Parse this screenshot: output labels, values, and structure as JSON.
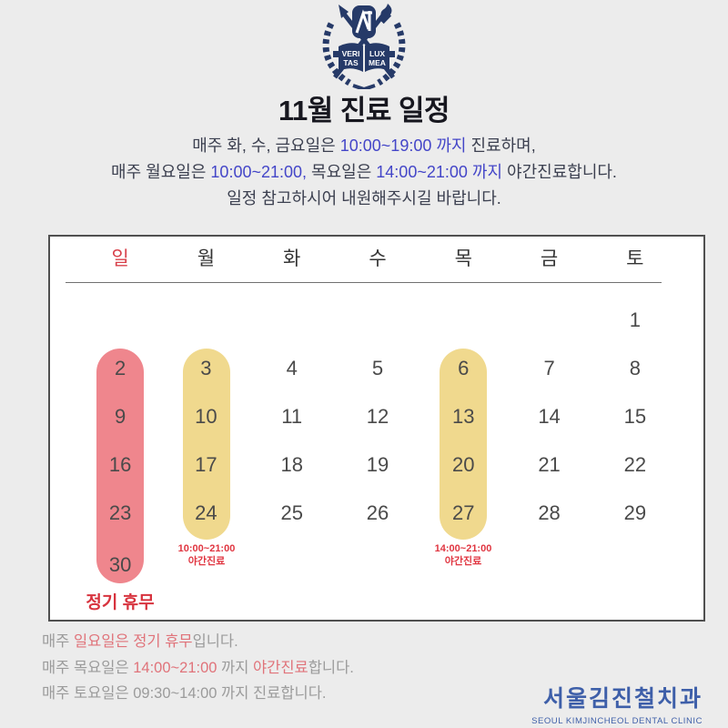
{
  "page": {
    "background": "#ececec"
  },
  "header": {
    "title": "11월 진료 일정",
    "crest": {
      "icon": "university-crest-icon",
      "color": "#263a68",
      "motto": [
        "VERI",
        "TAS",
        "LUX",
        "MEA"
      ]
    }
  },
  "intro": {
    "text_color": "#3c4050",
    "highlight_color": "#4446c8",
    "lines": [
      [
        {
          "t": "매주 화, 수, 금요일은 "
        },
        {
          "t": "10:00~19:00 까지",
          "c": "blue"
        },
        {
          "t": " 진료하며,"
        }
      ],
      [
        {
          "t": "매주 월요일은 "
        },
        {
          "t": "10:00~21:00,",
          "c": "blue"
        },
        {
          "t": " 목요일은 "
        },
        {
          "t": "14:00~21:00 까지",
          "c": "blue"
        },
        {
          "t": " 야간진료합니다."
        }
      ],
      [
        {
          "t": "일정 참고하시어 내원해주시길 바랍니다."
        }
      ]
    ]
  },
  "calendar": {
    "weekdays": [
      {
        "label": "일",
        "en": "sun",
        "accent": true
      },
      {
        "label": "월",
        "en": "mon",
        "accent": false
      },
      {
        "label": "화",
        "en": "tue",
        "accent": false
      },
      {
        "label": "수",
        "en": "wed",
        "accent": false
      },
      {
        "label": "목",
        "en": "thu",
        "accent": false
      },
      {
        "label": "금",
        "en": "fri",
        "accent": false
      },
      {
        "label": "토",
        "en": "sat",
        "accent": false
      }
    ],
    "weeks": [
      [
        null,
        null,
        null,
        null,
        null,
        null,
        1
      ],
      [
        2,
        3,
        4,
        5,
        6,
        7,
        8
      ],
      [
        9,
        10,
        11,
        12,
        13,
        14,
        15
      ],
      [
        16,
        17,
        18,
        19,
        20,
        21,
        22
      ],
      [
        23,
        24,
        25,
        26,
        27,
        28,
        29
      ],
      [
        30,
        null,
        null,
        null,
        null,
        null,
        null
      ]
    ],
    "highlights": {
      "sunday": {
        "days": [
          2,
          9,
          16,
          23,
          30
        ],
        "color": "#ef868d",
        "label": "정기 휴무",
        "label_color": "#d7333e"
      },
      "monday": {
        "days": [
          3,
          10,
          17,
          24
        ],
        "color": "#f0d98e",
        "note_time": "10:00~21:00",
        "note_label": "야간진료",
        "note_color": "#e03540"
      },
      "thursday": {
        "days": [
          6,
          13,
          20,
          27
        ],
        "color": "#f0d98e",
        "note_time": "14:00~21:00",
        "note_label": "야간진료",
        "note_color": "#e03540"
      }
    }
  },
  "footer": {
    "text_color": "#9b9b9b",
    "highlight_color": "#e0737a",
    "lines": [
      [
        {
          "t": "매주 "
        },
        {
          "t": "일요일은 정기 휴무",
          "c": "red"
        },
        {
          "t": "입니다."
        }
      ],
      [
        {
          "t": "매주 목요일은 "
        },
        {
          "t": "14:00~21:00",
          "c": "red"
        },
        {
          "t": " 까지 "
        },
        {
          "t": "야간진료",
          "c": "red"
        },
        {
          "t": "합니다."
        }
      ],
      [
        {
          "t": "매주 토요일은 09:30~14:00 까지 진료합니다."
        }
      ]
    ]
  },
  "brand": {
    "korean": "서울김진철치과",
    "english": "SEOUL KIMJINCHEOL DENTAL CLINIC",
    "color": "#3e5fa9"
  }
}
